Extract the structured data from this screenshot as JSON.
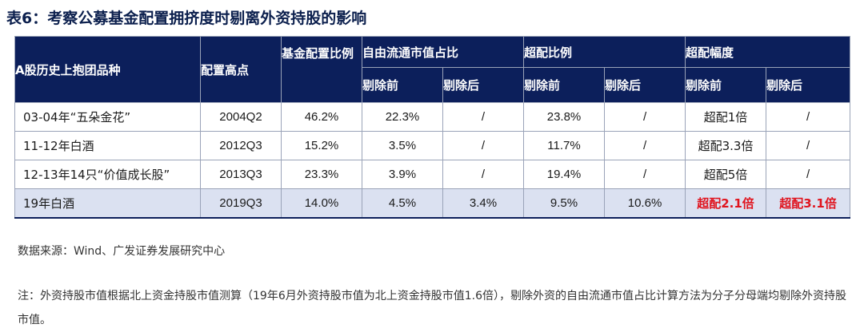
{
  "title": "表6：考察公募基金配置拥挤度时剔离外资持股的影响",
  "headers": {
    "col_variety": "A股历史上抱团品种",
    "col_peak": "配置高点",
    "col_alloc": "基金配置比例",
    "group_float": "自由流通市值占比",
    "group_over": "超配比例",
    "group_mag": "超配幅度",
    "before": "剔除前",
    "after": "剔除后"
  },
  "rows": [
    {
      "name": "03-04年“五朵金花”",
      "peak": "2004Q2",
      "alloc": "46.2%",
      "float_before": "22.3%",
      "float_after": "/",
      "over_before": "23.8%",
      "over_after": "/",
      "mag_before": "超配1倍",
      "mag_after": "/"
    },
    {
      "name": "11-12年白酒",
      "peak": "2012Q3",
      "alloc": "15.2%",
      "float_before": "3.5%",
      "float_after": "/",
      "over_before": "11.7%",
      "over_after": "/",
      "mag_before": "超配3.3倍",
      "mag_after": "/"
    },
    {
      "name": "12-13年14只“价值成长股”",
      "peak": "2013Q3",
      "alloc": "23.3%",
      "float_before": "3.9%",
      "float_after": "/",
      "over_before": "19.4%",
      "over_after": "/",
      "mag_before": "超配5倍",
      "mag_after": "/"
    },
    {
      "name": "19年白酒",
      "peak": "2019Q3",
      "alloc": "14.0%",
      "float_before": "4.5%",
      "float_after": "3.4%",
      "over_before": "9.5%",
      "over_after": "10.6%",
      "mag_before": "超配2.1倍",
      "mag_after": "超配3.1倍"
    }
  ],
  "source": "数据来源：Wind、广发证券发展研究中心",
  "note": "注：外资持股市值根据北上资金持股市值测算（19年6月外资持股市值为北上资金持股市值1.6倍），剔除外资的自由流通市值占比计算方法为分子分母端均剔除外资持股市值。",
  "colors": {
    "header_bg": "#0c1f5b",
    "highlight_bg": "#dbe1f1",
    "emphasis": "#e0141e"
  }
}
